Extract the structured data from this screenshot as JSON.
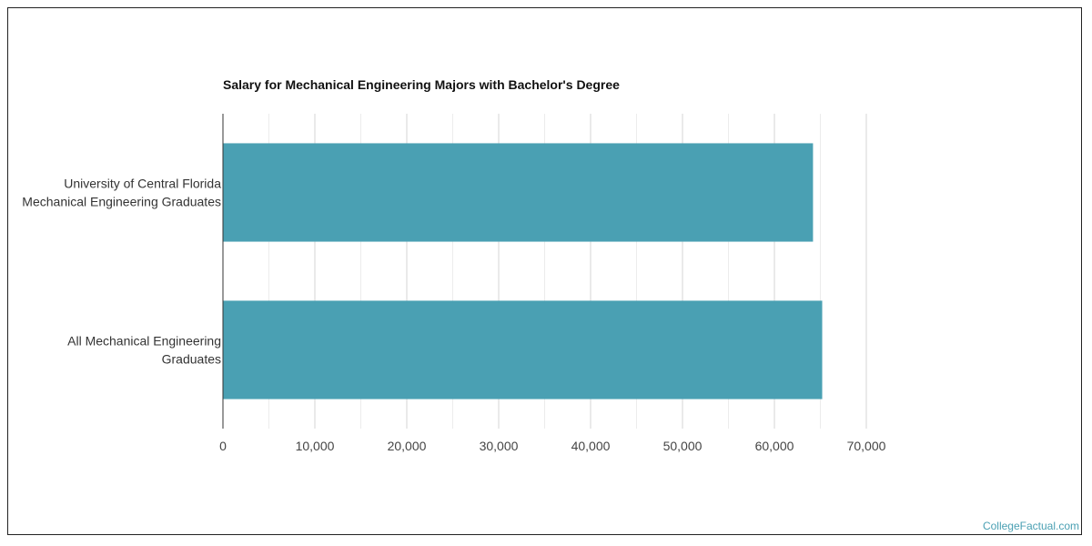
{
  "chart_data": {
    "type": "bar",
    "orientation": "horizontal",
    "title": "Salary for Mechanical Engineering Majors with Bachelor's Degree",
    "categories": [
      [
        "University of Central Florida",
        "Mechanical Engineering Graduates"
      ],
      [
        "All Mechanical Engineering",
        "Graduates"
      ]
    ],
    "values": [
      64200,
      65200
    ],
    "xlim": [
      0,
      70000
    ],
    "xticks": [
      0,
      10000,
      20000,
      30000,
      40000,
      50000,
      60000,
      70000
    ],
    "xtick_labels": [
      "0",
      "10,000",
      "20,000",
      "30,000",
      "40,000",
      "50,000",
      "60,000",
      "70,000"
    ],
    "grid": true,
    "bar_color": "#4aa0b3"
  },
  "footer": {
    "source": "CollegeFactual.com"
  }
}
